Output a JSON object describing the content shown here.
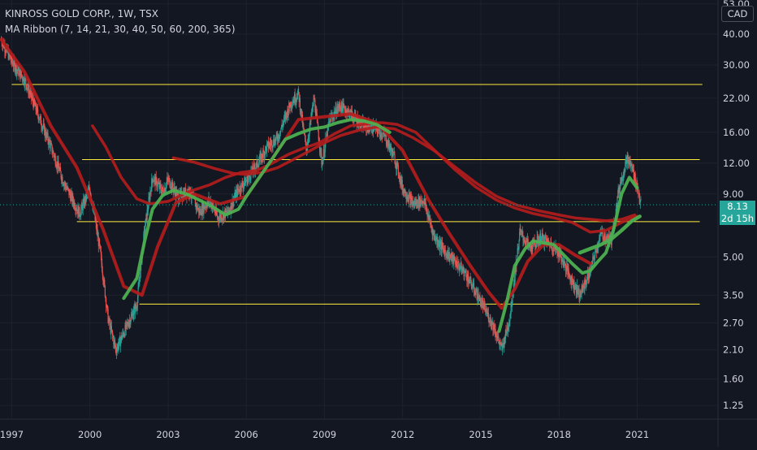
{
  "header": {
    "symbol_line": "KINROSS GOLD CORP., 1W, TSX",
    "indicator_line": "MA Ribbon (7, 14, 21, 30, 40, 50, 60, 200, 365)"
  },
  "currency": "CAD",
  "last_price": {
    "value": "8.13",
    "countdown": "2d 15h",
    "color": "#26a69a"
  },
  "colors": {
    "background": "#131722",
    "up": "#26a69a",
    "down": "#ef5350",
    "support_resistance": "#ffeb3b",
    "ma_fast": "#4caf50",
    "ma_slow": "#b71c1c"
  },
  "chart_data": {
    "type": "line",
    "y_scale": "log",
    "ylim": [
      1.1,
      55
    ],
    "xlim": [
      1996.55,
      2024.1
    ],
    "y_ticks": [
      "53.00",
      "40.00",
      "30.00",
      "22.00",
      "16.00",
      "12.00",
      "9.00",
      "5.00",
      "3.50",
      "2.70",
      "2.10",
      "1.60",
      "1.25"
    ],
    "x_ticks": [
      "1997",
      "2000",
      "2003",
      "2006",
      "2009",
      "2012",
      "2015",
      "2018",
      "2021"
    ],
    "support_resistance_levels": [
      {
        "price": 25.0,
        "from": 1997.0,
        "to": 2023.5
      },
      {
        "price": 12.4,
        "from": 1999.7,
        "to": 2023.4
      },
      {
        "price": 6.95,
        "from": 1999.5,
        "to": 2023.4
      },
      {
        "price": 3.22,
        "from": 2001.9,
        "to": 2023.4
      }
    ],
    "series": [
      {
        "role": "price",
        "x": [
          1996.6,
          1997.0,
          1997.5,
          1998.0,
          1998.5,
          1999.0,
          1999.6,
          2000.0,
          2000.4,
          2000.7,
          2001.0,
          2001.4,
          2001.8,
          2002.1,
          2002.4,
          2002.8,
          2003.0,
          2003.4,
          2003.8,
          2004.2,
          2004.6,
          2004.9,
          2005.3,
          2005.7,
          2006.0,
          2006.4,
          2006.8,
          2007.2,
          2007.7,
          2008.0,
          2008.3,
          2008.6,
          2008.9,
          2009.2,
          2009.6,
          2010.0,
          2010.5,
          2011.0,
          2011.3,
          2011.7,
          2012.0,
          2012.4,
          2012.8,
          2013.2,
          2013.6,
          2014.0,
          2014.4,
          2014.8,
          2015.2,
          2015.5,
          2015.8,
          2016.1,
          2016.5,
          2016.9,
          2017.3,
          2017.7,
          2018.0,
          2018.5,
          2018.8,
          2019.2,
          2019.6,
          2020.0,
          2020.3,
          2020.6,
          2020.8,
          2021.0,
          2021.15
        ],
        "values": [
          38,
          31,
          26,
          19,
          14,
          10,
          7.5,
          9.5,
          5.2,
          2.8,
          2.1,
          2.6,
          3.2,
          6.5,
          10.5,
          9.2,
          10.3,
          8.7,
          9.3,
          7.6,
          8.5,
          7.2,
          7.6,
          9.4,
          10.2,
          11.8,
          14.0,
          15.2,
          21.0,
          23.0,
          13.5,
          22.0,
          12.0,
          18.0,
          20.5,
          19.0,
          17.0,
          16.5,
          15.5,
          12.5,
          9.5,
          8.2,
          8.5,
          6.1,
          5.3,
          4.8,
          4.3,
          3.6,
          3.0,
          2.6,
          2.1,
          2.8,
          6.3,
          5.4,
          6.0,
          5.6,
          5.2,
          4.0,
          3.5,
          4.4,
          6.2,
          5.8,
          9.5,
          12.5,
          11.5,
          9.6,
          8.13
        ]
      },
      {
        "role": "fast_ma",
        "x": [
          2001.3,
          2001.8,
          2002.1,
          2002.4,
          2002.8,
          2003.2,
          2003.7,
          2004.2,
          2004.7,
          2005.2,
          2005.7,
          2006.0,
          2006.5,
          2007.0,
          2007.5,
          2008.0,
          2008.5,
          2009.0,
          2009.5,
          2010.0,
          2010.5,
          2011.0,
          2011.5
        ],
        "values": [
          3.4,
          4.1,
          5.8,
          7.8,
          8.9,
          9.3,
          9.0,
          8.5,
          8.0,
          7.4,
          7.8,
          8.8,
          10.5,
          12.5,
          15.0,
          15.8,
          16.5,
          16.8,
          17.5,
          18.0,
          17.8,
          17.2,
          16.0
        ]
      },
      {
        "role": "fast_ma",
        "x": [
          2015.7,
          2016.0,
          2016.3,
          2016.7,
          2017.0,
          2017.4,
          2017.8,
          2018.1,
          2018.5,
          2018.9,
          2019.2,
          2019.5,
          2019.8,
          2020.1,
          2020.4,
          2020.7,
          2021.0
        ],
        "values": [
          2.5,
          3.3,
          4.6,
          5.4,
          5.8,
          5.7,
          5.6,
          5.2,
          4.7,
          4.3,
          4.4,
          4.8,
          5.2,
          6.5,
          9.0,
          10.5,
          9.5
        ]
      },
      {
        "role": "fast_ma",
        "x": [
          2018.8,
          2019.2,
          2019.6,
          2020.0,
          2020.4,
          2020.8,
          2021.1
        ],
        "values": [
          5.2,
          5.4,
          5.6,
          5.9,
          6.4,
          7.0,
          7.3
        ]
      },
      {
        "role": "slow_ma",
        "x": [
          1996.6,
          1997.5,
          1998.5,
          1999.5,
          2000.5,
          2001.3,
          2002.0,
          2002.6,
          2003.3,
          2004.0,
          2005.0,
          2006.0,
          2007.0,
          2008.0,
          2009.0,
          2010.0,
          2011.0,
          2012.0,
          2013.0,
          2013.8,
          2014.6,
          2015.3,
          2015.8,
          2016.3,
          2016.8,
          2017.4,
          2018.0,
          2018.6,
          2019.2
        ],
        "values": [
          38,
          28,
          17,
          11.5,
          6.5,
          3.8,
          3.5,
          5.5,
          8.3,
          9.0,
          8.2,
          8.8,
          12.5,
          18.0,
          18.5,
          19.0,
          17.5,
          13.5,
          8.5,
          6.2,
          4.6,
          3.6,
          3.1,
          3.7,
          4.8,
          5.6,
          5.6,
          5.1,
          4.7
        ]
      },
      {
        "role": "slow_ma",
        "x": [
          2000.1,
          2000.6,
          2001.2,
          2001.8,
          2002.3,
          2003.0,
          2003.8,
          2004.6,
          2005.2,
          2005.8,
          2006.4,
          2007.0,
          2007.6,
          2008.2,
          2008.8,
          2009.4,
          2010.0,
          2010.6,
          2011.2,
          2011.8,
          2012.5,
          2013.2,
          2014.0,
          2014.8,
          2015.6,
          2016.3,
          2017.0,
          2017.8,
          2018.5,
          2019.2,
          2019.8,
          2020.4,
          2021.0
        ],
        "values": [
          17.0,
          14.0,
          10.5,
          8.6,
          8.2,
          8.4,
          9.2,
          9.8,
          10.5,
          11.0,
          11.2,
          12.0,
          13.0,
          13.8,
          14.5,
          15.8,
          17.0,
          17.3,
          17.5,
          17.2,
          16.0,
          13.6,
          11.3,
          9.6,
          8.5,
          7.9,
          7.5,
          7.2,
          6.9,
          6.3,
          6.4,
          6.9,
          7.3
        ]
      },
      {
        "role": "slow_ma",
        "x": [
          2003.2,
          2004.0,
          2004.8,
          2005.5,
          2006.0,
          2006.6,
          2007.2,
          2007.8,
          2008.4,
          2009.0,
          2009.6,
          2010.3,
          2011.0,
          2011.7,
          2012.4,
          2013.2,
          2014.0,
          2014.8,
          2015.6,
          2016.4,
          2017.2,
          2018.0,
          2018.6,
          2019.2,
          2019.8,
          2020.4,
          2020.9
        ],
        "values": [
          12.6,
          12.1,
          11.4,
          10.9,
          10.8,
          11.0,
          11.5,
          12.4,
          13.4,
          14.5,
          15.5,
          16.3,
          16.8,
          16.5,
          15.2,
          13.5,
          11.6,
          10.0,
          8.8,
          8.1,
          7.7,
          7.4,
          7.2,
          7.1,
          7.0,
          7.1,
          7.4
        ]
      }
    ]
  }
}
